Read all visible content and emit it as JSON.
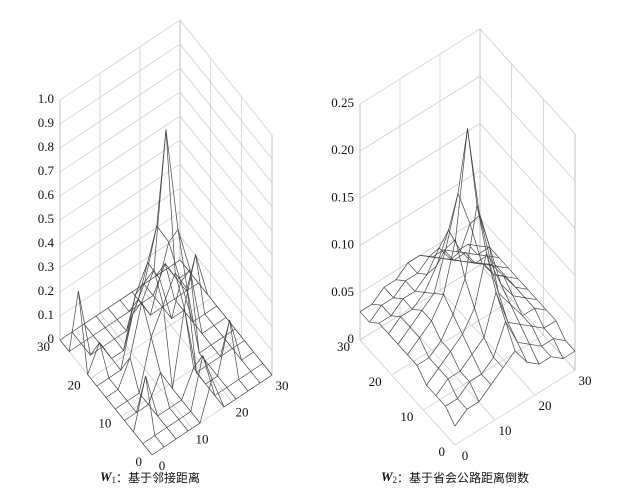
{
  "chart_data": [
    {
      "type": "surface",
      "caption_symbol": "W",
      "caption_subscript": "1",
      "caption_text": "：基于邻接距离",
      "x": [
        0,
        3,
        6,
        9,
        12,
        15,
        18,
        21,
        24,
        27,
        30
      ],
      "y": [
        0,
        3,
        6,
        9,
        12,
        15,
        18,
        21,
        24,
        27,
        30
      ],
      "z": [
        [
          0,
          0,
          0,
          0,
          0,
          0.15,
          0,
          0,
          0,
          0,
          0
        ],
        [
          0,
          0,
          0,
          0,
          0,
          0.2,
          0,
          0,
          0,
          0,
          0
        ],
        [
          0,
          0.2,
          0,
          0,
          0,
          0.1,
          0,
          0,
          0.2,
          0,
          0
        ],
        [
          0,
          0,
          0,
          0.1,
          0,
          0.3,
          0,
          0,
          0,
          0,
          0
        ],
        [
          0,
          0,
          0,
          0.2,
          0.3,
          0.4,
          0.3,
          0,
          0,
          0,
          0
        ],
        [
          0,
          0,
          0.1,
          0.3,
          0.4,
          0.95,
          0.5,
          0.3,
          0,
          0,
          0
        ],
        [
          0,
          0,
          0,
          0.2,
          0.3,
          0.5,
          0.4,
          0.2,
          0,
          0,
          0
        ],
        [
          0,
          0.1,
          0,
          0,
          0.2,
          0.3,
          0.2,
          0,
          0,
          0.2,
          0
        ],
        [
          0.3,
          0,
          0,
          0,
          0,
          0.1,
          0,
          0,
          0,
          0,
          0
        ],
        [
          0,
          0,
          0,
          0,
          0,
          0,
          0,
          0,
          0.1,
          0,
          0
        ],
        [
          0,
          0,
          0,
          0,
          0,
          0,
          0,
          0,
          0,
          0,
          0
        ]
      ],
      "xlim": [
        0,
        30
      ],
      "ylim": [
        0,
        30
      ],
      "zlim": [
        0,
        1
      ],
      "xticks": [
        0,
        10,
        20,
        30
      ],
      "yticks": [
        0,
        10,
        20,
        30
      ],
      "zticks": [
        0,
        0.1,
        0.2,
        0.3,
        0.4,
        0.5,
        0.6,
        0.7,
        0.8,
        0.9,
        {
          "value": 1,
          "label": "1.0"
        }
      ],
      "color": "#444444",
      "grid": true
    },
    {
      "type": "surface",
      "caption_symbol": "W",
      "caption_subscript": "2",
      "caption_text": "：基于省会公路距离倒数",
      "x": [
        0,
        3,
        6,
        9,
        12,
        15,
        18,
        21,
        24,
        27,
        30
      ],
      "y": [
        0,
        3,
        6,
        9,
        12,
        15,
        18,
        21,
        24,
        27,
        30
      ],
      "z": [
        [
          0.02,
          0.03,
          0.03,
          0.04,
          0.05,
          0.06,
          0.04,
          0.03,
          0.03,
          0.02,
          0.02
        ],
        [
          0.03,
          0.03,
          0.04,
          0.04,
          0.05,
          0.08,
          0.05,
          0.04,
          0.03,
          0.03,
          0.02
        ],
        [
          0.03,
          0.04,
          0.04,
          0.05,
          0.06,
          0.1,
          0.06,
          0.05,
          0.04,
          0.03,
          0.03
        ],
        [
          0.03,
          0.04,
          0.05,
          0.06,
          0.08,
          0.13,
          0.08,
          0.06,
          0.04,
          0.04,
          0.03
        ],
        [
          0.04,
          0.04,
          0.05,
          0.07,
          0.1,
          0.17,
          0.12,
          0.07,
          0.05,
          0.04,
          0.03
        ],
        [
          0.04,
          0.05,
          0.06,
          0.08,
          0.13,
          0.24,
          0.14,
          0.08,
          0.06,
          0.04,
          0.03
        ],
        [
          0.04,
          0.05,
          0.06,
          0.07,
          0.11,
          0.16,
          0.12,
          0.07,
          0.05,
          0.04,
          0.03
        ],
        [
          0.04,
          0.05,
          0.05,
          0.06,
          0.08,
          0.11,
          0.08,
          0.06,
          0.05,
          0.04,
          0.03
        ],
        [
          0.04,
          0.04,
          0.05,
          0.05,
          0.06,
          0.08,
          0.06,
          0.05,
          0.04,
          0.04,
          0.03
        ],
        [
          0.03,
          0.04,
          0.04,
          0.05,
          0.05,
          0.06,
          0.05,
          0.04,
          0.04,
          0.03,
          0.03
        ],
        [
          0.03,
          0.03,
          0.04,
          0.04,
          0.05,
          0.05,
          0.04,
          0.04,
          0.03,
          0.03,
          0.02
        ]
      ],
      "xlim": [
        0,
        30
      ],
      "ylim": [
        0,
        30
      ],
      "zlim": [
        0,
        0.25
      ],
      "xticks": [
        0,
        10,
        20,
        30
      ],
      "yticks": [
        0,
        10,
        20,
        30
      ],
      "zticks": [
        0,
        0.05,
        {
          "value": 0.1,
          "label": "0.10"
        },
        0.15,
        {
          "value": 0.2,
          "label": "0.20"
        },
        0.25
      ],
      "color": "#444444",
      "grid": true
    }
  ]
}
